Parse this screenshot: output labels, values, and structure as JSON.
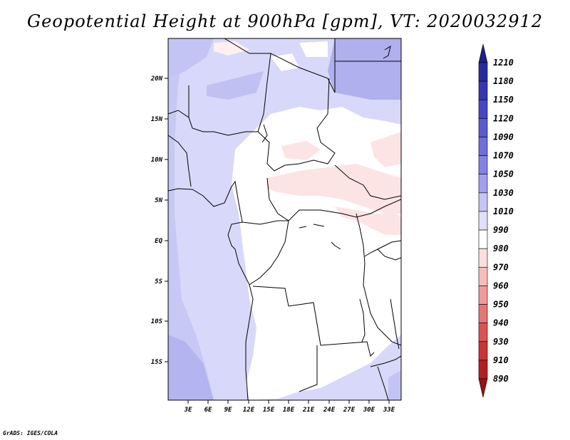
{
  "title": "Geopotential Height at 900hPa [gpm], VT: 2020032912",
  "credit": "GrADS: IGES/COLA",
  "map": {
    "variable": "Geopotential Height",
    "level": "900hPa",
    "units": "gpm",
    "valid_time": "2020032912",
    "lat_labels": [
      "20N",
      "15N",
      "10N",
      "5N",
      "EQ",
      "5S",
      "10S",
      "15S"
    ],
    "lat_values": [
      20,
      15,
      10,
      5,
      0,
      -5,
      -10,
      -15
    ],
    "lon_labels": [
      "3E",
      "6E",
      "9E",
      "12E",
      "15E",
      "18E",
      "21E",
      "24E",
      "27E",
      "30E",
      "33E"
    ],
    "lon_values": [
      3,
      6,
      9,
      12,
      15,
      18,
      21,
      24,
      27,
      30,
      33
    ]
  },
  "colorbar": {
    "labels": [
      "1210",
      "1180",
      "1150",
      "1120",
      "1090",
      "1070",
      "1050",
      "1030",
      "1010",
      "990",
      "980",
      "970",
      "960",
      "950",
      "940",
      "930",
      "910",
      "890"
    ],
    "colors": [
      "#1e1e8c",
      "#2a2aa0",
      "#3636b4",
      "#4646c8",
      "#5a5ad2",
      "#6e6edc",
      "#8282e6",
      "#a0a0ee",
      "#c4c4f6",
      "#e0e0fa",
      "#ffffff",
      "#fcdede",
      "#f8bcbc",
      "#f09a9a",
      "#e67676",
      "#dc5252",
      "#cc3434",
      "#b41e1e",
      "#961414"
    ]
  }
}
